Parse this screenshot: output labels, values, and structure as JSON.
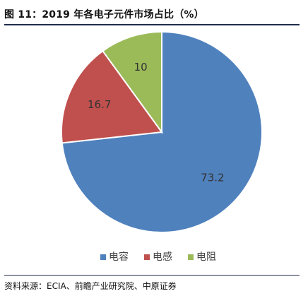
{
  "header": {
    "title": "图 11：2019 年各电子元件市场占比（%）"
  },
  "chart_data": {
    "type": "pie",
    "categories": [
      "电容",
      "电感",
      "电阻"
    ],
    "values": [
      73.2,
      16.7,
      10
    ],
    "data_labels": [
      "73.2",
      "16.7",
      "10"
    ],
    "colors": [
      "#4f81bd",
      "#c0504d",
      "#9bbb59"
    ],
    "start_angle_deg": 0,
    "direction": "clockwise",
    "legend_position": "bottom"
  },
  "footer": {
    "source": "资料来源：ECIA、前瞻产业研究院、中原证券"
  }
}
